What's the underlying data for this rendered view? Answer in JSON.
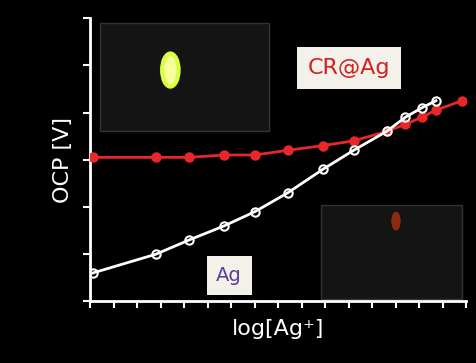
{
  "chart_data": {
    "type": "line",
    "x_label": "log[Ag⁺]",
    "y_label": "OCP [V]",
    "xlim": [
      0,
      16
    ],
    "xticks": [
      0,
      1,
      2,
      3,
      4,
      5,
      6,
      7,
      8,
      9,
      10,
      11,
      12,
      13,
      14,
      15,
      16
    ],
    "ylim": [
      0,
      6
    ],
    "yticks": [
      0,
      1,
      2,
      3,
      4,
      5,
      6
    ],
    "tick_labels": false,
    "grid": false,
    "series": [
      {
        "name": "CR@Ag",
        "color": "#e8272a",
        "marker": "filled",
        "x": [
          0.1,
          2.8,
          4.2,
          5.7,
          7.0,
          8.4,
          9.9,
          11.2,
          12.6,
          13.4,
          14.1,
          14.7,
          15.8
        ],
        "values": [
          3.05,
          3.05,
          3.05,
          3.1,
          3.1,
          3.2,
          3.3,
          3.4,
          3.6,
          3.75,
          3.9,
          4.05,
          4.25
        ]
      },
      {
        "name": "Ag",
        "color": "#ffffff",
        "marker": "open",
        "x": [
          0.1,
          2.8,
          4.2,
          5.7,
          7.0,
          8.4,
          9.9,
          11.2,
          12.6,
          13.4,
          14.1,
          14.7
        ],
        "values": [
          0.6,
          1.0,
          1.3,
          1.6,
          1.9,
          2.3,
          2.8,
          3.2,
          3.6,
          3.9,
          4.1,
          4.25
        ]
      }
    ]
  }
}
